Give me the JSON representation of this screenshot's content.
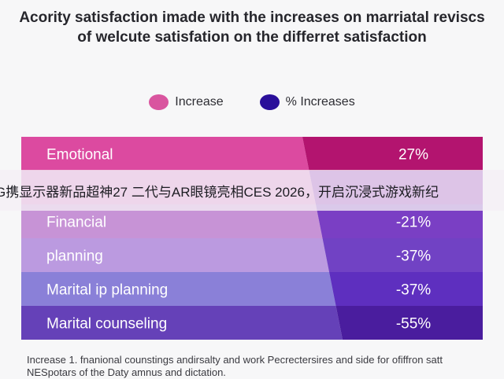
{
  "chart_data": {
    "type": "table",
    "title": "Acority satisfaction imade with the increases on marriatal reviscs of welcute satisfation on the differret satisfaction",
    "legend": {
      "placement": "top",
      "entries": [
        {
          "label": "Increase",
          "color": "#d9559f"
        },
        {
          "label": "% Increases",
          "color": "#2a0f9a"
        }
      ]
    },
    "rows": [
      {
        "label": "Emotional",
        "value_label": "27%",
        "value": 27,
        "left_color": "#dc4aa0",
        "right_color": "#b3146f"
      },
      {
        "label": "",
        "value_label": "",
        "value": null,
        "left_color": "#d77ac8",
        "right_color": "#8a2bb4"
      },
      {
        "label": "Financial",
        "value_label": "-21%",
        "value": -21,
        "left_color": "#c793d6",
        "right_color": "#7a3fc4"
      },
      {
        "label": "planning",
        "value_label": "-37%",
        "value": -37,
        "left_color": "#bb9ae0",
        "right_color": "#7142c4"
      },
      {
        "label": "Marital ip planning",
        "value_label": "-37%",
        "value": -37,
        "left_color": "#8a80d8",
        "right_color": "#5e2fbf"
      },
      {
        "label": "Marital counseling",
        "value_label": "-55%",
        "value": -55,
        "left_color": "#6541b8",
        "right_color": "#4a1d9e"
      }
    ],
    "footnote": "Increase 1. fnanional counstings andirsalty and work Pecrectersires and side for ofiffron satt NESpotars of the Daty amnus and dictation."
  },
  "overlay": {
    "banner_text": "G携显示器新品超神27 二代与AR眼镜亮相CES 2026，开启沉浸式游戏新纪"
  }
}
